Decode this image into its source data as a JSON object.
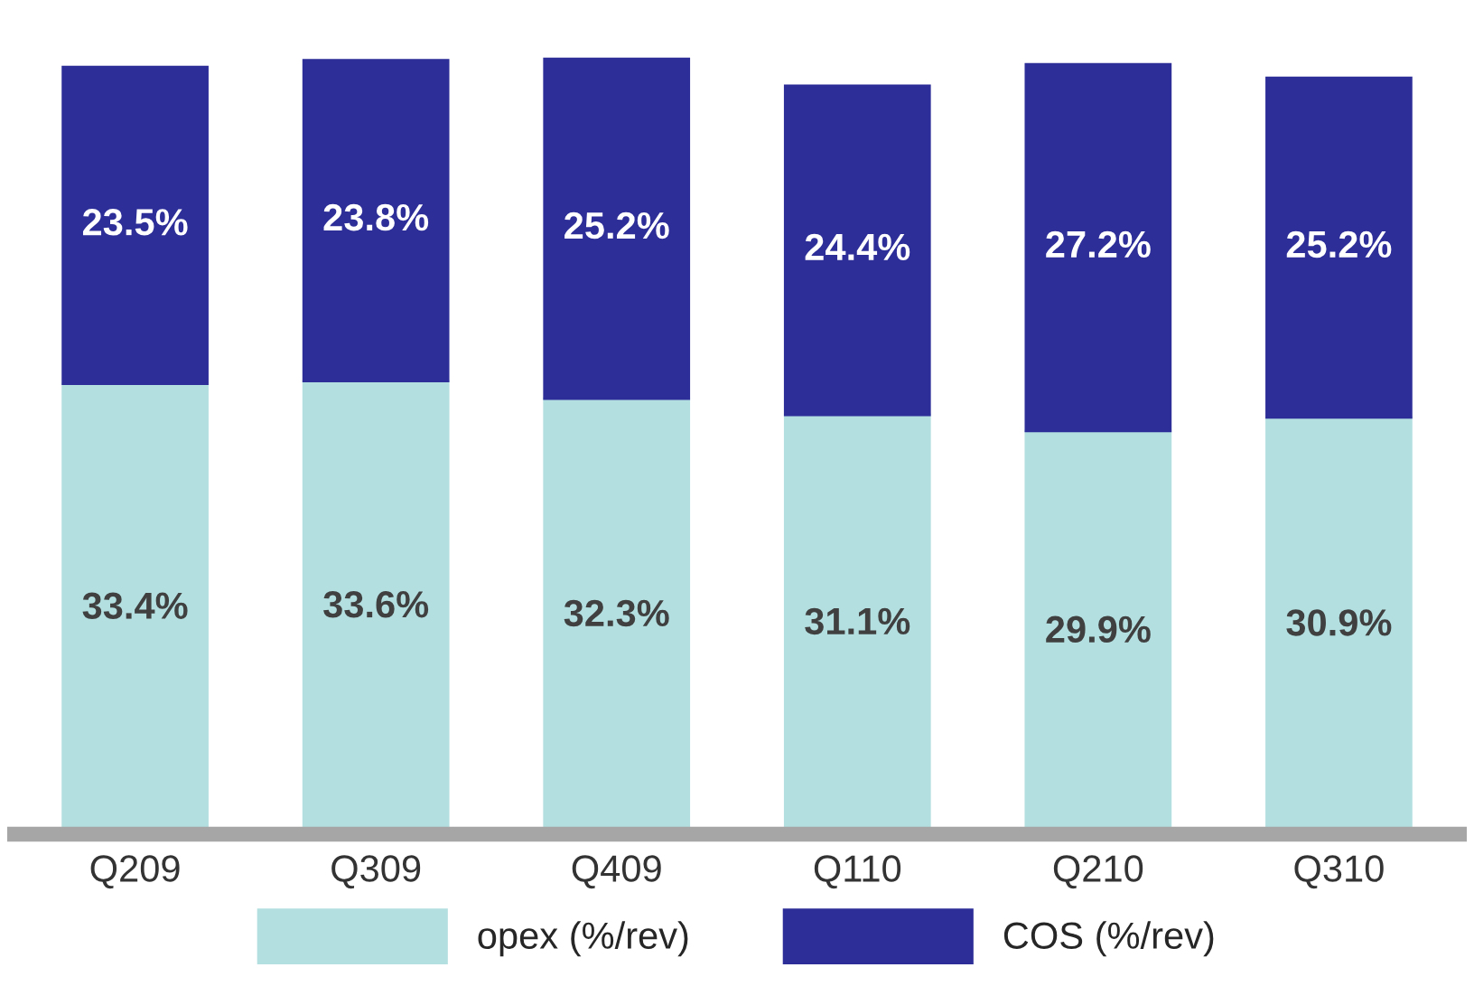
{
  "chart_data": {
    "type": "bar",
    "stacked": true,
    "categories": [
      "Q209",
      "Q309",
      "Q409",
      "Q110",
      "Q210",
      "Q310"
    ],
    "series": [
      {
        "name": "opex (%/rev)",
        "color": "#b3dfe0",
        "values": [
          33.4,
          33.6,
          32.3,
          31.1,
          29.9,
          30.9
        ],
        "value_labels": [
          "33.4%",
          "33.6%",
          "32.3%",
          "31.1%",
          "29.9%",
          "30.9%"
        ]
      },
      {
        "name": "COS (%/rev)",
        "color": "#2e2e99",
        "values": [
          23.5,
          23.8,
          25.2,
          24.4,
          27.2,
          25.2
        ],
        "value_labels": [
          "23.5%",
          "23.8%",
          "25.2%",
          "24.4%",
          "27.2%",
          "25.2%"
        ]
      }
    ],
    "tick_labels": "x",
    "legend": "bottom",
    "grid": false
  }
}
